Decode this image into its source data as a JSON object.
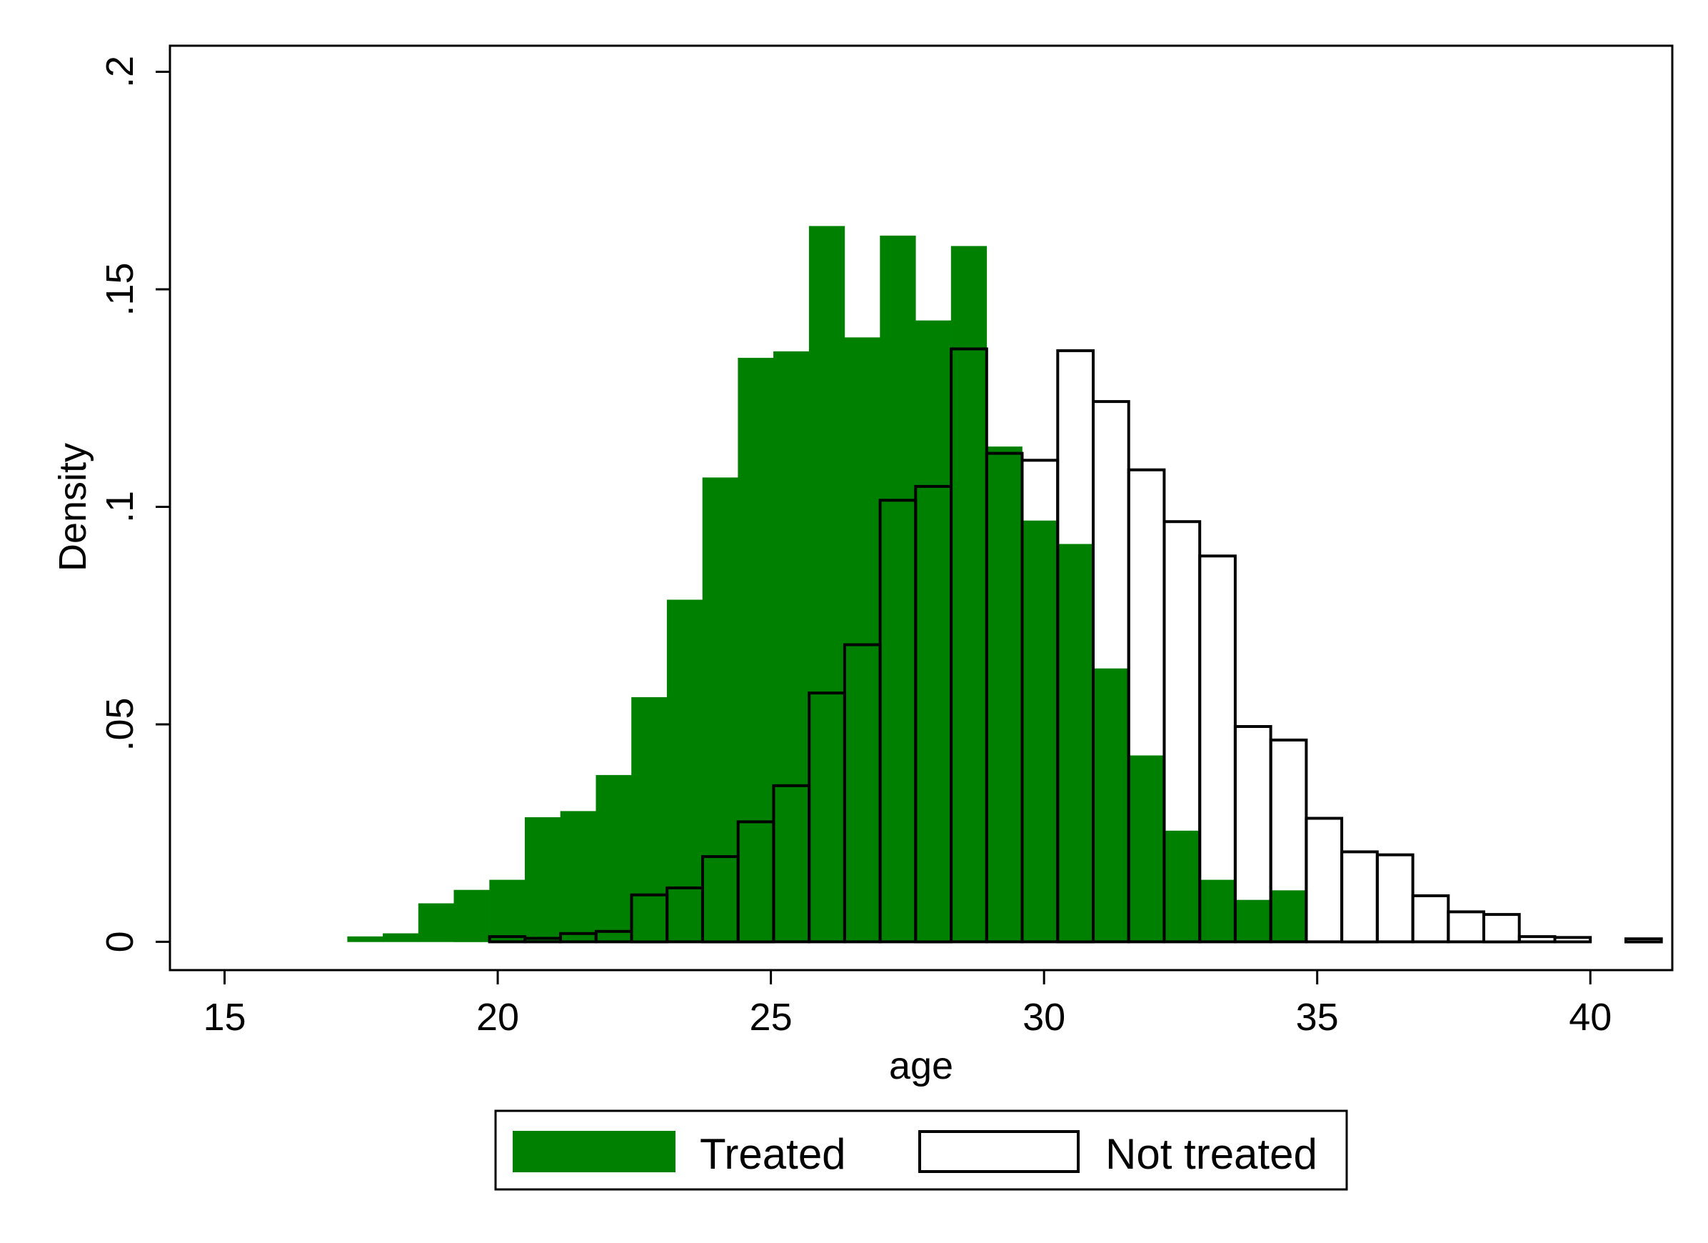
{
  "chart_data": {
    "type": "bar",
    "subtype": "overlaid histogram",
    "xlabel": "age",
    "ylabel": "Density",
    "xlim": [
      14,
      41.5
    ],
    "ylim": [
      -0.0065,
      0.206
    ],
    "x_ticks": [
      15,
      20,
      25,
      30,
      35,
      40
    ],
    "x_tick_labels": [
      "15",
      "20",
      "25",
      "30",
      "35",
      "40"
    ],
    "y_ticks": [
      0,
      0.05,
      0.1,
      0.15,
      0.2
    ],
    "y_tick_labels": [
      "0",
      ".05",
      ".1",
      ".15",
      ".2"
    ],
    "grid": false,
    "legend_position": "bottom",
    "bin_width": 0.65,
    "series": [
      {
        "name": "Treated",
        "style": "filled",
        "color": "#008000",
        "x_start": [
          17.25,
          17.9,
          18.55,
          19.2,
          19.85,
          20.5,
          21.15,
          21.8,
          22.45,
          23.1,
          23.75,
          24.4,
          25.05,
          25.7,
          26.35,
          27.0,
          27.65,
          28.3,
          28.95,
          29.6,
          30.25,
          30.9,
          31.55,
          32.2,
          32.85,
          33.5,
          34.15
        ],
        "values": [
          0.0012,
          0.0019,
          0.0088,
          0.0119,
          0.0142,
          0.0286,
          0.03,
          0.0383,
          0.0562,
          0.0786,
          0.1067,
          0.1342,
          0.1357,
          0.1645,
          0.1389,
          0.1623,
          0.1428,
          0.1599,
          0.1138,
          0.0968,
          0.0914,
          0.0628,
          0.0428,
          0.0255,
          0.0142,
          0.0096,
          0.0118
        ]
      },
      {
        "name": "Not treated",
        "style": "outline",
        "color": "#ffffff",
        "edge_color": "#000000",
        "x_start": [
          19.85,
          20.5,
          21.15,
          21.8,
          22.45,
          23.1,
          23.75,
          24.4,
          25.05,
          25.7,
          26.35,
          27.0,
          27.65,
          28.3,
          28.95,
          29.6,
          30.25,
          30.9,
          31.55,
          32.2,
          32.85,
          33.5,
          34.15,
          34.8,
          35.45,
          36.1,
          36.75,
          37.4,
          38.05,
          38.7,
          39.35,
          40.0,
          40.65
        ],
        "values": [
          0.0012,
          0.0008,
          0.0019,
          0.0024,
          0.0108,
          0.0124,
          0.0196,
          0.0276,
          0.0359,
          0.0572,
          0.0683,
          0.1015,
          0.1047,
          0.1363,
          0.1123,
          0.1107,
          0.1359,
          0.1242,
          0.1085,
          0.0966,
          0.0887,
          0.0495,
          0.0464,
          0.0284,
          0.0207,
          0.02,
          0.0106,
          0.0069,
          0.0063,
          0.0012,
          0.001,
          0.0,
          0.0007
        ]
      }
    ]
  }
}
